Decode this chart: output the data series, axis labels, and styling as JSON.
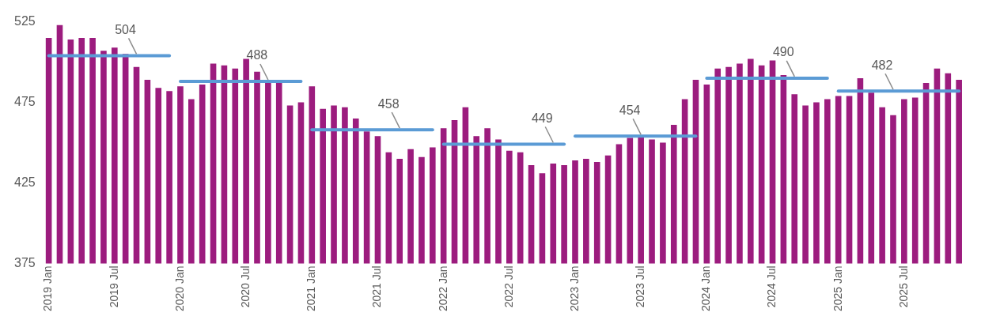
{
  "chart_data": {
    "type": "bar",
    "categories": [
      "2019 Jan",
      null,
      null,
      null,
      null,
      null,
      "2019 Jul",
      null,
      null,
      null,
      null,
      null,
      "2020 Jan",
      null,
      null,
      null,
      null,
      null,
      "2020 Jul",
      null,
      null,
      null,
      null,
      null,
      "2021 Jan",
      null,
      null,
      null,
      null,
      null,
      "2021 Jul",
      null,
      null,
      null,
      null,
      null,
      "2022 Jan",
      null,
      null,
      null,
      null,
      null,
      "2022 Jul",
      null,
      null,
      null,
      null,
      null,
      "2023 Jan",
      null,
      null,
      null,
      null,
      null,
      "2023 Jul",
      null,
      null,
      null,
      null,
      null,
      "2024 Jan",
      null,
      null,
      null,
      null,
      null,
      "2024 Jul",
      null,
      null,
      null,
      null,
      null,
      "2025 Jan",
      null,
      null,
      null,
      null,
      null,
      "2025 Jul",
      null,
      null,
      null,
      null,
      null
    ],
    "series": [
      {
        "color": "#9c1c7e",
        "values": [
          515,
          523,
          514,
          515,
          515,
          507,
          509,
          505,
          497,
          489,
          484,
          482,
          485,
          477,
          486,
          499,
          498,
          496,
          502,
          494,
          488,
          487,
          473,
          475,
          485,
          471,
          473,
          472,
          465,
          457,
          454,
          444,
          440,
          446,
          441,
          447,
          459,
          464,
          472,
          454,
          459,
          452,
          445,
          444,
          436,
          431,
          437,
          436,
          439,
          440,
          438,
          442,
          449,
          453,
          454,
          452,
          450,
          461,
          477,
          489,
          486,
          496,
          497,
          499,
          502,
          498,
          501,
          492,
          480,
          473,
          475,
          477,
          479,
          479,
          490,
          481,
          472,
          467,
          477,
          478,
          487,
          496,
          493,
          489
        ]
      },
      {
        "type": "line",
        "color": "#5b9bd5",
        "values": [
          504,
          504,
          504,
          504,
          504,
          504,
          504,
          504,
          504,
          504,
          504,
          504,
          null,
          null,
          null,
          null,
          null,
          null,
          null,
          null,
          null,
          null,
          null,
          null,
          null,
          null,
          null,
          null,
          null,
          null,
          null,
          null,
          null,
          null,
          null,
          null,
          null,
          null,
          null,
          null,
          null,
          null,
          null,
          null,
          null,
          null,
          null,
          null,
          null,
          null,
          null,
          null,
          null,
          null,
          null,
          null,
          null,
          null,
          null,
          null,
          null,
          null,
          null,
          null,
          null,
          null,
          null,
          null,
          null,
          null,
          null,
          null,
          null,
          null,
          null,
          null,
          null,
          null,
          null,
          null,
          null,
          null,
          null,
          null
        ],
        "value_labels": [
          null,
          null,
          null,
          null,
          null,
          null,
          null,
          null,
          "504",
          null,
          null,
          null,
          null,
          null,
          null,
          null,
          null,
          null,
          null,
          null,
          null,
          null,
          null,
          null,
          null,
          null,
          null,
          null,
          null,
          null,
          null,
          null,
          null,
          null,
          null,
          null,
          null,
          null,
          null,
          null,
          null,
          null,
          null,
          null,
          null,
          null,
          null,
          null,
          null,
          null,
          null,
          null,
          null,
          null,
          null,
          null,
          null,
          null,
          null,
          null,
          null,
          null,
          null,
          null,
          null,
          null,
          null,
          null,
          null,
          null,
          null,
          null,
          null,
          null,
          null,
          null,
          null,
          null,
          null,
          null,
          null,
          null,
          null,
          null
        ]
      },
      {
        "type": "line",
        "color": "#5b9bd5",
        "values": [
          null,
          null,
          null,
          null,
          null,
          null,
          null,
          null,
          null,
          null,
          null,
          null,
          488,
          488,
          488,
          488,
          488,
          488,
          488,
          488,
          488,
          488,
          488,
          488,
          null,
          null,
          null,
          null,
          null,
          null,
          null,
          null,
          null,
          null,
          null,
          null,
          null,
          null,
          null,
          null,
          null,
          null,
          null,
          null,
          null,
          null,
          null,
          null,
          null,
          null,
          null,
          null,
          null,
          null,
          null,
          null,
          null,
          null,
          null,
          null,
          null,
          null,
          null,
          null,
          null,
          null,
          null,
          null,
          null,
          null,
          null,
          null,
          null,
          null,
          null,
          null,
          null,
          null,
          null,
          null,
          null,
          null,
          null,
          null
        ],
        "value_labels": [
          null,
          null,
          null,
          null,
          null,
          null,
          null,
          null,
          null,
          null,
          null,
          null,
          null,
          null,
          null,
          null,
          null,
          null,
          null,
          null,
          "488",
          null,
          null,
          null,
          null,
          null,
          null,
          null,
          null,
          null,
          null,
          null,
          null,
          null,
          null,
          null,
          null,
          null,
          null,
          null,
          null,
          null,
          null,
          null,
          null,
          null,
          null,
          null,
          null,
          null,
          null,
          null,
          null,
          null,
          null,
          null,
          null,
          null,
          null,
          null,
          null,
          null,
          null,
          null,
          null,
          null,
          null,
          null,
          null,
          null,
          null,
          null,
          null,
          null,
          null,
          null,
          null,
          null,
          null,
          null,
          null,
          null,
          null,
          null
        ]
      },
      {
        "type": "line",
        "color": "#5b9bd5",
        "values": [
          null,
          null,
          null,
          null,
          null,
          null,
          null,
          null,
          null,
          null,
          null,
          null,
          null,
          null,
          null,
          null,
          null,
          null,
          null,
          null,
          null,
          null,
          null,
          null,
          458,
          458,
          458,
          458,
          458,
          458,
          458,
          458,
          458,
          458,
          458,
          458,
          null,
          null,
          null,
          null,
          null,
          null,
          null,
          null,
          null,
          null,
          null,
          null,
          null,
          null,
          null,
          null,
          null,
          null,
          null,
          null,
          null,
          null,
          null,
          null,
          null,
          null,
          null,
          null,
          null,
          null,
          null,
          null,
          null,
          null,
          null,
          null,
          null,
          null,
          null,
          null,
          null,
          null,
          null,
          null,
          null,
          null,
          null,
          null
        ],
        "value_labels": [
          null,
          null,
          null,
          null,
          null,
          null,
          null,
          null,
          null,
          null,
          null,
          null,
          null,
          null,
          null,
          null,
          null,
          null,
          null,
          null,
          null,
          null,
          null,
          null,
          null,
          null,
          null,
          null,
          null,
          null,
          null,
          null,
          "458",
          null,
          null,
          null,
          null,
          null,
          null,
          null,
          null,
          null,
          null,
          null,
          null,
          null,
          null,
          null,
          null,
          null,
          null,
          null,
          null,
          null,
          null,
          null,
          null,
          null,
          null,
          null,
          null,
          null,
          null,
          null,
          null,
          null,
          null,
          null,
          null,
          null,
          null,
          null,
          null,
          null,
          null,
          null,
          null,
          null,
          null,
          null,
          null,
          null,
          null,
          null
        ]
      },
      {
        "type": "line",
        "color": "#5b9bd5",
        "values": [
          null,
          null,
          null,
          null,
          null,
          null,
          null,
          null,
          null,
          null,
          null,
          null,
          null,
          null,
          null,
          null,
          null,
          null,
          null,
          null,
          null,
          null,
          null,
          null,
          null,
          null,
          null,
          null,
          null,
          null,
          null,
          null,
          null,
          null,
          null,
          null,
          449,
          449,
          449,
          449,
          449,
          449,
          449,
          449,
          449,
          449,
          449,
          449,
          null,
          null,
          null,
          null,
          null,
          null,
          null,
          null,
          null,
          null,
          null,
          null,
          null,
          null,
          null,
          null,
          null,
          null,
          null,
          null,
          null,
          null,
          null,
          null,
          null,
          null,
          null,
          null,
          null,
          null,
          null,
          null,
          null,
          null,
          null,
          null
        ],
        "value_labels": [
          null,
          null,
          null,
          null,
          null,
          null,
          null,
          null,
          null,
          null,
          null,
          null,
          null,
          null,
          null,
          null,
          null,
          null,
          null,
          null,
          null,
          null,
          null,
          null,
          null,
          null,
          null,
          null,
          null,
          null,
          null,
          null,
          null,
          null,
          null,
          null,
          null,
          null,
          null,
          null,
          null,
          null,
          null,
          null,
          null,
          null,
          "449",
          null,
          null,
          null,
          null,
          null,
          null,
          null,
          null,
          null,
          null,
          null,
          null,
          null,
          null,
          null,
          null,
          null,
          null,
          null,
          null,
          null,
          null,
          null,
          null,
          null,
          null,
          null,
          null,
          null,
          null,
          null,
          null,
          null,
          null,
          null,
          null,
          null
        ]
      },
      {
        "type": "line",
        "color": "#5b9bd5",
        "values": [
          null,
          null,
          null,
          null,
          null,
          null,
          null,
          null,
          null,
          null,
          null,
          null,
          null,
          null,
          null,
          null,
          null,
          null,
          null,
          null,
          null,
          null,
          null,
          null,
          null,
          null,
          null,
          null,
          null,
          null,
          null,
          null,
          null,
          null,
          null,
          null,
          null,
          null,
          null,
          null,
          null,
          null,
          null,
          null,
          null,
          null,
          null,
          null,
          454,
          454,
          454,
          454,
          454,
          454,
          454,
          454,
          454,
          454,
          454,
          454,
          null,
          null,
          null,
          null,
          null,
          null,
          null,
          null,
          null,
          null,
          null,
          null,
          null,
          null,
          null,
          null,
          null,
          null,
          null,
          null,
          null,
          null,
          null,
          null
        ],
        "value_labels": [
          null,
          null,
          null,
          null,
          null,
          null,
          null,
          null,
          null,
          null,
          null,
          null,
          null,
          null,
          null,
          null,
          null,
          null,
          null,
          null,
          null,
          null,
          null,
          null,
          null,
          null,
          null,
          null,
          null,
          null,
          null,
          null,
          null,
          null,
          null,
          null,
          null,
          null,
          null,
          null,
          null,
          null,
          null,
          null,
          null,
          null,
          null,
          null,
          null,
          null,
          null,
          null,
          null,
          null,
          "454",
          null,
          null,
          null,
          null,
          null,
          null,
          null,
          null,
          null,
          null,
          null,
          null,
          null,
          null,
          null,
          null,
          null,
          null,
          null,
          null,
          null,
          null,
          null,
          null,
          null,
          null,
          null,
          null,
          null
        ]
      },
      {
        "type": "line",
        "color": "#5b9bd5",
        "values": [
          null,
          null,
          null,
          null,
          null,
          null,
          null,
          null,
          null,
          null,
          null,
          null,
          null,
          null,
          null,
          null,
          null,
          null,
          null,
          null,
          null,
          null,
          null,
          null,
          null,
          null,
          null,
          null,
          null,
          null,
          null,
          null,
          null,
          null,
          null,
          null,
          null,
          null,
          null,
          null,
          null,
          null,
          null,
          null,
          null,
          null,
          null,
          null,
          null,
          null,
          null,
          null,
          null,
          null,
          null,
          null,
          null,
          null,
          null,
          null,
          490,
          490,
          490,
          490,
          490,
          490,
          490,
          490,
          490,
          490,
          490,
          490,
          null,
          null,
          null,
          null,
          null,
          null,
          null,
          null,
          null,
          null,
          null,
          null
        ],
        "value_labels": [
          null,
          null,
          null,
          null,
          null,
          null,
          null,
          null,
          null,
          null,
          null,
          null,
          null,
          null,
          null,
          null,
          null,
          null,
          null,
          null,
          null,
          null,
          null,
          null,
          null,
          null,
          null,
          null,
          null,
          null,
          null,
          null,
          null,
          null,
          null,
          null,
          null,
          null,
          null,
          null,
          null,
          null,
          null,
          null,
          null,
          null,
          null,
          null,
          null,
          null,
          null,
          null,
          null,
          null,
          null,
          null,
          null,
          null,
          null,
          null,
          null,
          null,
          null,
          null,
          null,
          null,
          null,
          null,
          "490",
          null,
          null,
          null,
          null,
          null,
          null,
          null,
          null,
          null,
          null,
          null,
          null,
          null,
          null,
          null
        ]
      },
      {
        "type": "line",
        "color": "#5b9bd5",
        "values": [
          null,
          null,
          null,
          null,
          null,
          null,
          null,
          null,
          null,
          null,
          null,
          null,
          null,
          null,
          null,
          null,
          null,
          null,
          null,
          null,
          null,
          null,
          null,
          null,
          null,
          null,
          null,
          null,
          null,
          null,
          null,
          null,
          null,
          null,
          null,
          null,
          null,
          null,
          null,
          null,
          null,
          null,
          null,
          null,
          null,
          null,
          null,
          null,
          null,
          null,
          null,
          null,
          null,
          null,
          null,
          null,
          null,
          null,
          null,
          null,
          null,
          null,
          null,
          null,
          null,
          null,
          null,
          null,
          null,
          null,
          null,
          null,
          482,
          482,
          482,
          482,
          482,
          482,
          482,
          482,
          482,
          482,
          482,
          482
        ],
        "value_labels": [
          null,
          null,
          null,
          null,
          null,
          null,
          null,
          null,
          null,
          null,
          null,
          null,
          null,
          null,
          null,
          null,
          null,
          null,
          null,
          null,
          null,
          null,
          null,
          null,
          null,
          null,
          null,
          null,
          null,
          null,
          null,
          null,
          null,
          null,
          null,
          null,
          null,
          null,
          null,
          null,
          null,
          null,
          null,
          null,
          null,
          null,
          null,
          null,
          null,
          null,
          null,
          null,
          null,
          null,
          null,
          null,
          null,
          null,
          null,
          null,
          null,
          null,
          null,
          null,
          null,
          null,
          null,
          null,
          null,
          null,
          null,
          null,
          null,
          null,
          null,
          null,
          null,
          "482",
          null,
          null,
          null,
          null,
          null,
          null
        ]
      }
    ],
    "ylim": [
      375,
      525
    ],
    "yticks": [
      375,
      425,
      475,
      525
    ],
    "grid": false,
    "legend": false
  }
}
